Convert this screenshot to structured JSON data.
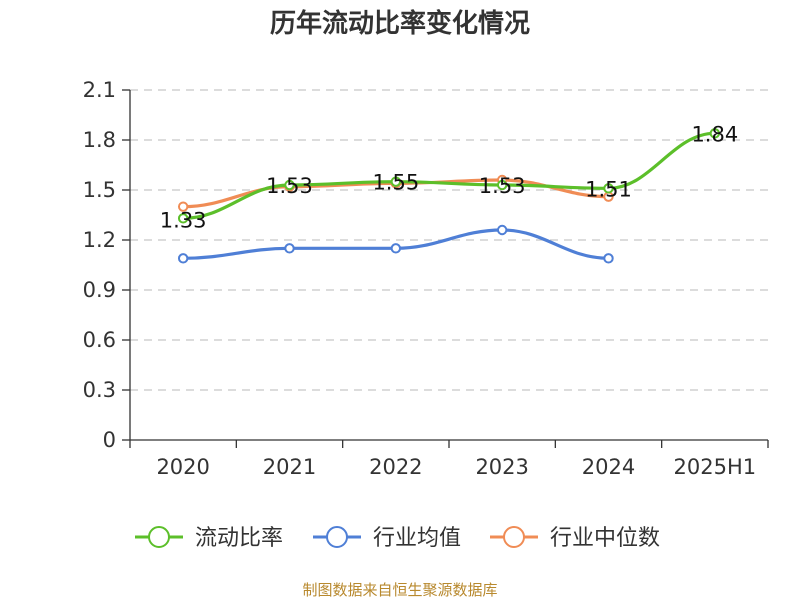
{
  "chart_data": {
    "type": "line",
    "title": "历年流动比率变化情况",
    "xlabel": "",
    "ylabel": "",
    "categories": [
      "2020",
      "2021",
      "2022",
      "2023",
      "2024",
      "2025H1"
    ],
    "ylim": [
      0,
      2.1
    ],
    "yticks": [
      "0",
      "0.3",
      "0.6",
      "0.9",
      "1.2",
      "1.5",
      "1.8",
      "2.1"
    ],
    "grid": "horizontal dashed",
    "legend_position": "bottom",
    "series": [
      {
        "name": "流动比率",
        "color": "#5cbf2a",
        "values": [
          1.33,
          1.53,
          1.55,
          1.53,
          1.51,
          1.84
        ],
        "labels": [
          "1.33",
          "1.53",
          "1.55",
          "1.53",
          "1.51",
          "1.84"
        ]
      },
      {
        "name": "行业均值",
        "color": "#4f7fd6",
        "values": [
          1.09,
          1.15,
          1.15,
          1.26,
          1.09,
          null
        ]
      },
      {
        "name": "行业中位数",
        "color": "#f08c55",
        "values": [
          1.4,
          1.52,
          1.54,
          1.56,
          1.46,
          null
        ]
      }
    ]
  },
  "source": "制图数据来自恒生聚源数据库"
}
